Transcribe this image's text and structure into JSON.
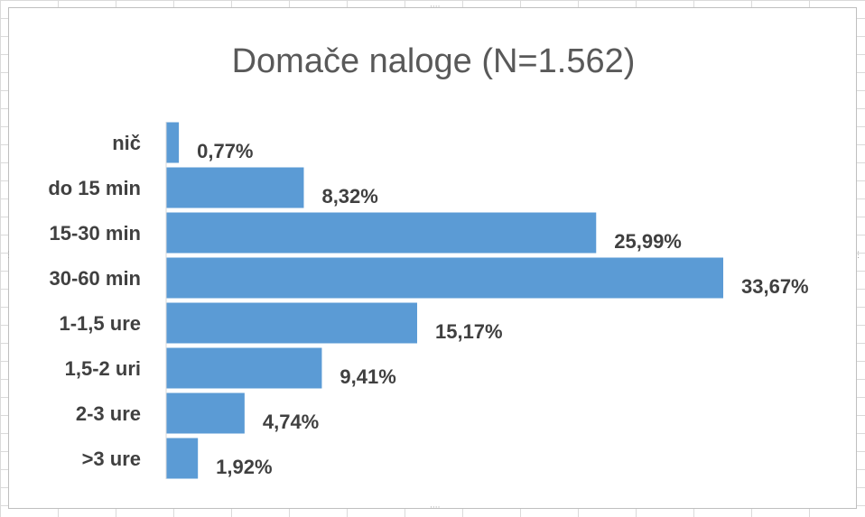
{
  "chart_data": {
    "type": "bar",
    "orientation": "horizontal",
    "title": "Domače naloge (N=1.562)",
    "categories": [
      "nič",
      "do 15 min",
      "15-30 min",
      "30-60 min",
      "1-1,5 ure",
      "1,5-2 uri",
      "2-3 ure",
      ">3 ure"
    ],
    "values": [
      0.77,
      8.32,
      25.99,
      33.67,
      15.17,
      9.41,
      4.74,
      1.92
    ],
    "data_labels": [
      "0,77%",
      "8,32%",
      "25,99%",
      "33,67%",
      "15,17%",
      "9,41%",
      "4,74%",
      "1,92%"
    ],
    "xlim": [
      0,
      33.67
    ],
    "grid": false,
    "legend": "none",
    "bar_color": "#5b9bd5"
  }
}
